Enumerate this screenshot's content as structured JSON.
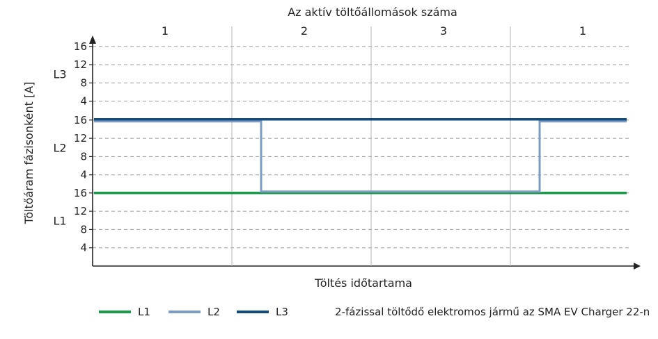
{
  "chart_data": {
    "type": "line",
    "title": "Az aktív töltőállomások száma",
    "xlabel": "Töltés időtartama",
    "ylabel": "Töltőáram fázisonként [A]",
    "phase_groups": [
      {
        "name": "L1",
        "ticks": [
          "4",
          "8",
          "12",
          "16"
        ]
      },
      {
        "name": "L2",
        "ticks": [
          "4",
          "8",
          "12",
          "16"
        ]
      },
      {
        "name": "L3",
        "ticks": [
          "4",
          "8",
          "12",
          "16"
        ]
      }
    ],
    "active_station_segments": [
      "1",
      "2",
      "3",
      "1"
    ],
    "grid": true,
    "legend_position": "bottom",
    "series": [
      {
        "name": "L1",
        "color": "#1a9a4a",
        "points": [
          [
            0,
            16
          ],
          [
            4,
            16
          ]
        ]
      },
      {
        "name": "L2",
        "color": "#7d9cc4",
        "points": [
          [
            0,
            16
          ],
          [
            1,
            16
          ],
          [
            1.2,
            16
          ],
          [
            1.2,
            0
          ],
          [
            3,
            0
          ],
          [
            3.2,
            0
          ],
          [
            3.2,
            16
          ],
          [
            4,
            16
          ]
        ]
      },
      {
        "name": "L3",
        "color": "#164a78",
        "points": [
          [
            0,
            16
          ],
          [
            4,
            16
          ]
        ]
      }
    ],
    "legend_note": "2-fázissal töltődő elektromos jármű az SMA EV Charger 22-n"
  }
}
